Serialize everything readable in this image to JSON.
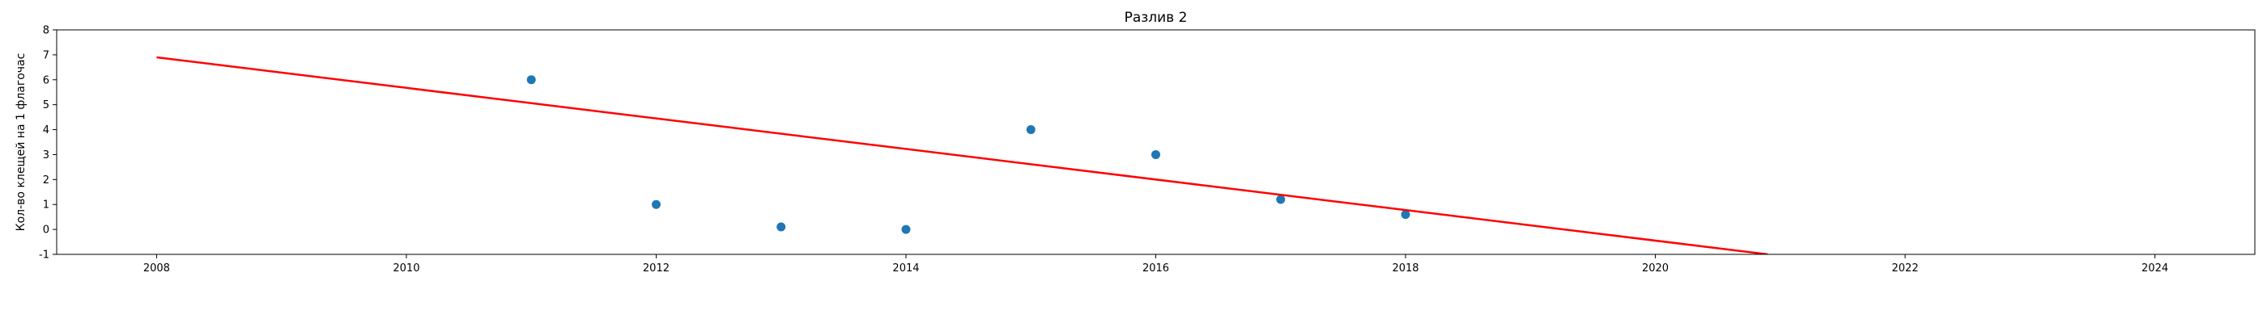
{
  "chart_data": {
    "type": "scatter",
    "title": "Разлив 2",
    "xlabel": "",
    "ylabel": "Кол-во клещей на 1 флагочас",
    "xlim": [
      2007.2,
      2024.8
    ],
    "ylim": [
      -1,
      8
    ],
    "xticks": [
      2008,
      2010,
      2012,
      2014,
      2016,
      2018,
      2020,
      2022,
      2024
    ],
    "yticks": [
      -1,
      0,
      1,
      2,
      3,
      4,
      5,
      6,
      7,
      8
    ],
    "grid": false,
    "series": [
      {
        "type": "scatter",
        "color": "#1f77b4",
        "x": [
          2011,
          2012,
          2013,
          2014,
          2015,
          2016,
          2017,
          2018
        ],
        "y": [
          6.0,
          1.0,
          0.1,
          0.0,
          4.0,
          3.0,
          1.2,
          0.6
        ]
      },
      {
        "type": "line",
        "color": "#ff0000",
        "x": [
          2008,
          2020.9
        ],
        "y": [
          6.9,
          -1.0
        ]
      }
    ]
  }
}
